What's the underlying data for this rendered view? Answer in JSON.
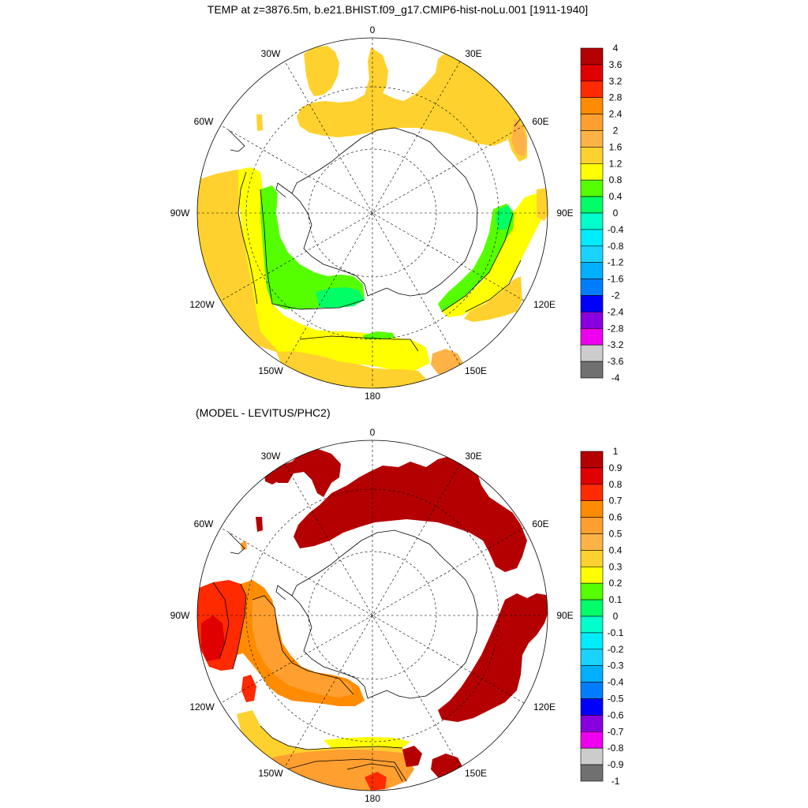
{
  "top_panel": {
    "title": "TEMP at z=3876.5m, b.e21.BHIST.f09_g17.CMIP6-hist-noLu.001 [1911-1940]",
    "longitude_labels": [
      "0",
      "30E",
      "60E",
      "90E",
      "120E",
      "150E",
      "180",
      "150W",
      "120W",
      "90W",
      "60W",
      "30W"
    ],
    "colorbar": {
      "labels": [
        "4",
        "3.6",
        "3.2",
        "2.8",
        "2.4",
        "2",
        "1.6",
        "1.2",
        "0.8",
        "0.4",
        "0",
        "-0.4",
        "-0.8",
        "-1.2",
        "-1.6",
        "-2",
        "-2.4",
        "-2.8",
        "-3.2",
        "-3.6",
        "-4"
      ],
      "colors": [
        "#b40000",
        "#e00000",
        "#ff2a00",
        "#ff8c00",
        "#ff9f30",
        "#ffb347",
        "#ffd12e",
        "#ffff00",
        "#55ff00",
        "#00ff66",
        "#00ffcc",
        "#00ecff",
        "#1ad3ff",
        "#00b0ff",
        "#007dff",
        "#0000ff",
        "#8800dd",
        "#ee00ee",
        "#cccccc",
        "#707070"
      ]
    }
  },
  "bottom_panel": {
    "title": "(MODEL - LEVITUS/PHC2)",
    "longitude_labels": [
      "0",
      "30E",
      "60E",
      "90E",
      "120E",
      "150E",
      "180",
      "150W",
      "120W",
      "90W",
      "60W",
      "30W"
    ],
    "colorbar": {
      "labels": [
        "1",
        "0.9",
        "0.8",
        "0.7",
        "0.6",
        "0.5",
        "0.4",
        "0.3",
        "0.2",
        "0.1",
        "0",
        "-0.1",
        "-0.2",
        "-0.3",
        "-0.4",
        "-0.5",
        "-0.6",
        "-0.7",
        "-0.8",
        "-0.9",
        "-1"
      ],
      "colors": [
        "#b40000",
        "#e00000",
        "#ff2a00",
        "#ff8c00",
        "#ff9f30",
        "#ffb347",
        "#ffd12e",
        "#ffff00",
        "#55ff00",
        "#00ff66",
        "#00ffcc",
        "#00ecff",
        "#1ad3ff",
        "#00b0ff",
        "#007dff",
        "#0000ff",
        "#8800dd",
        "#ee00ee",
        "#cccccc",
        "#707070"
      ]
    }
  }
}
